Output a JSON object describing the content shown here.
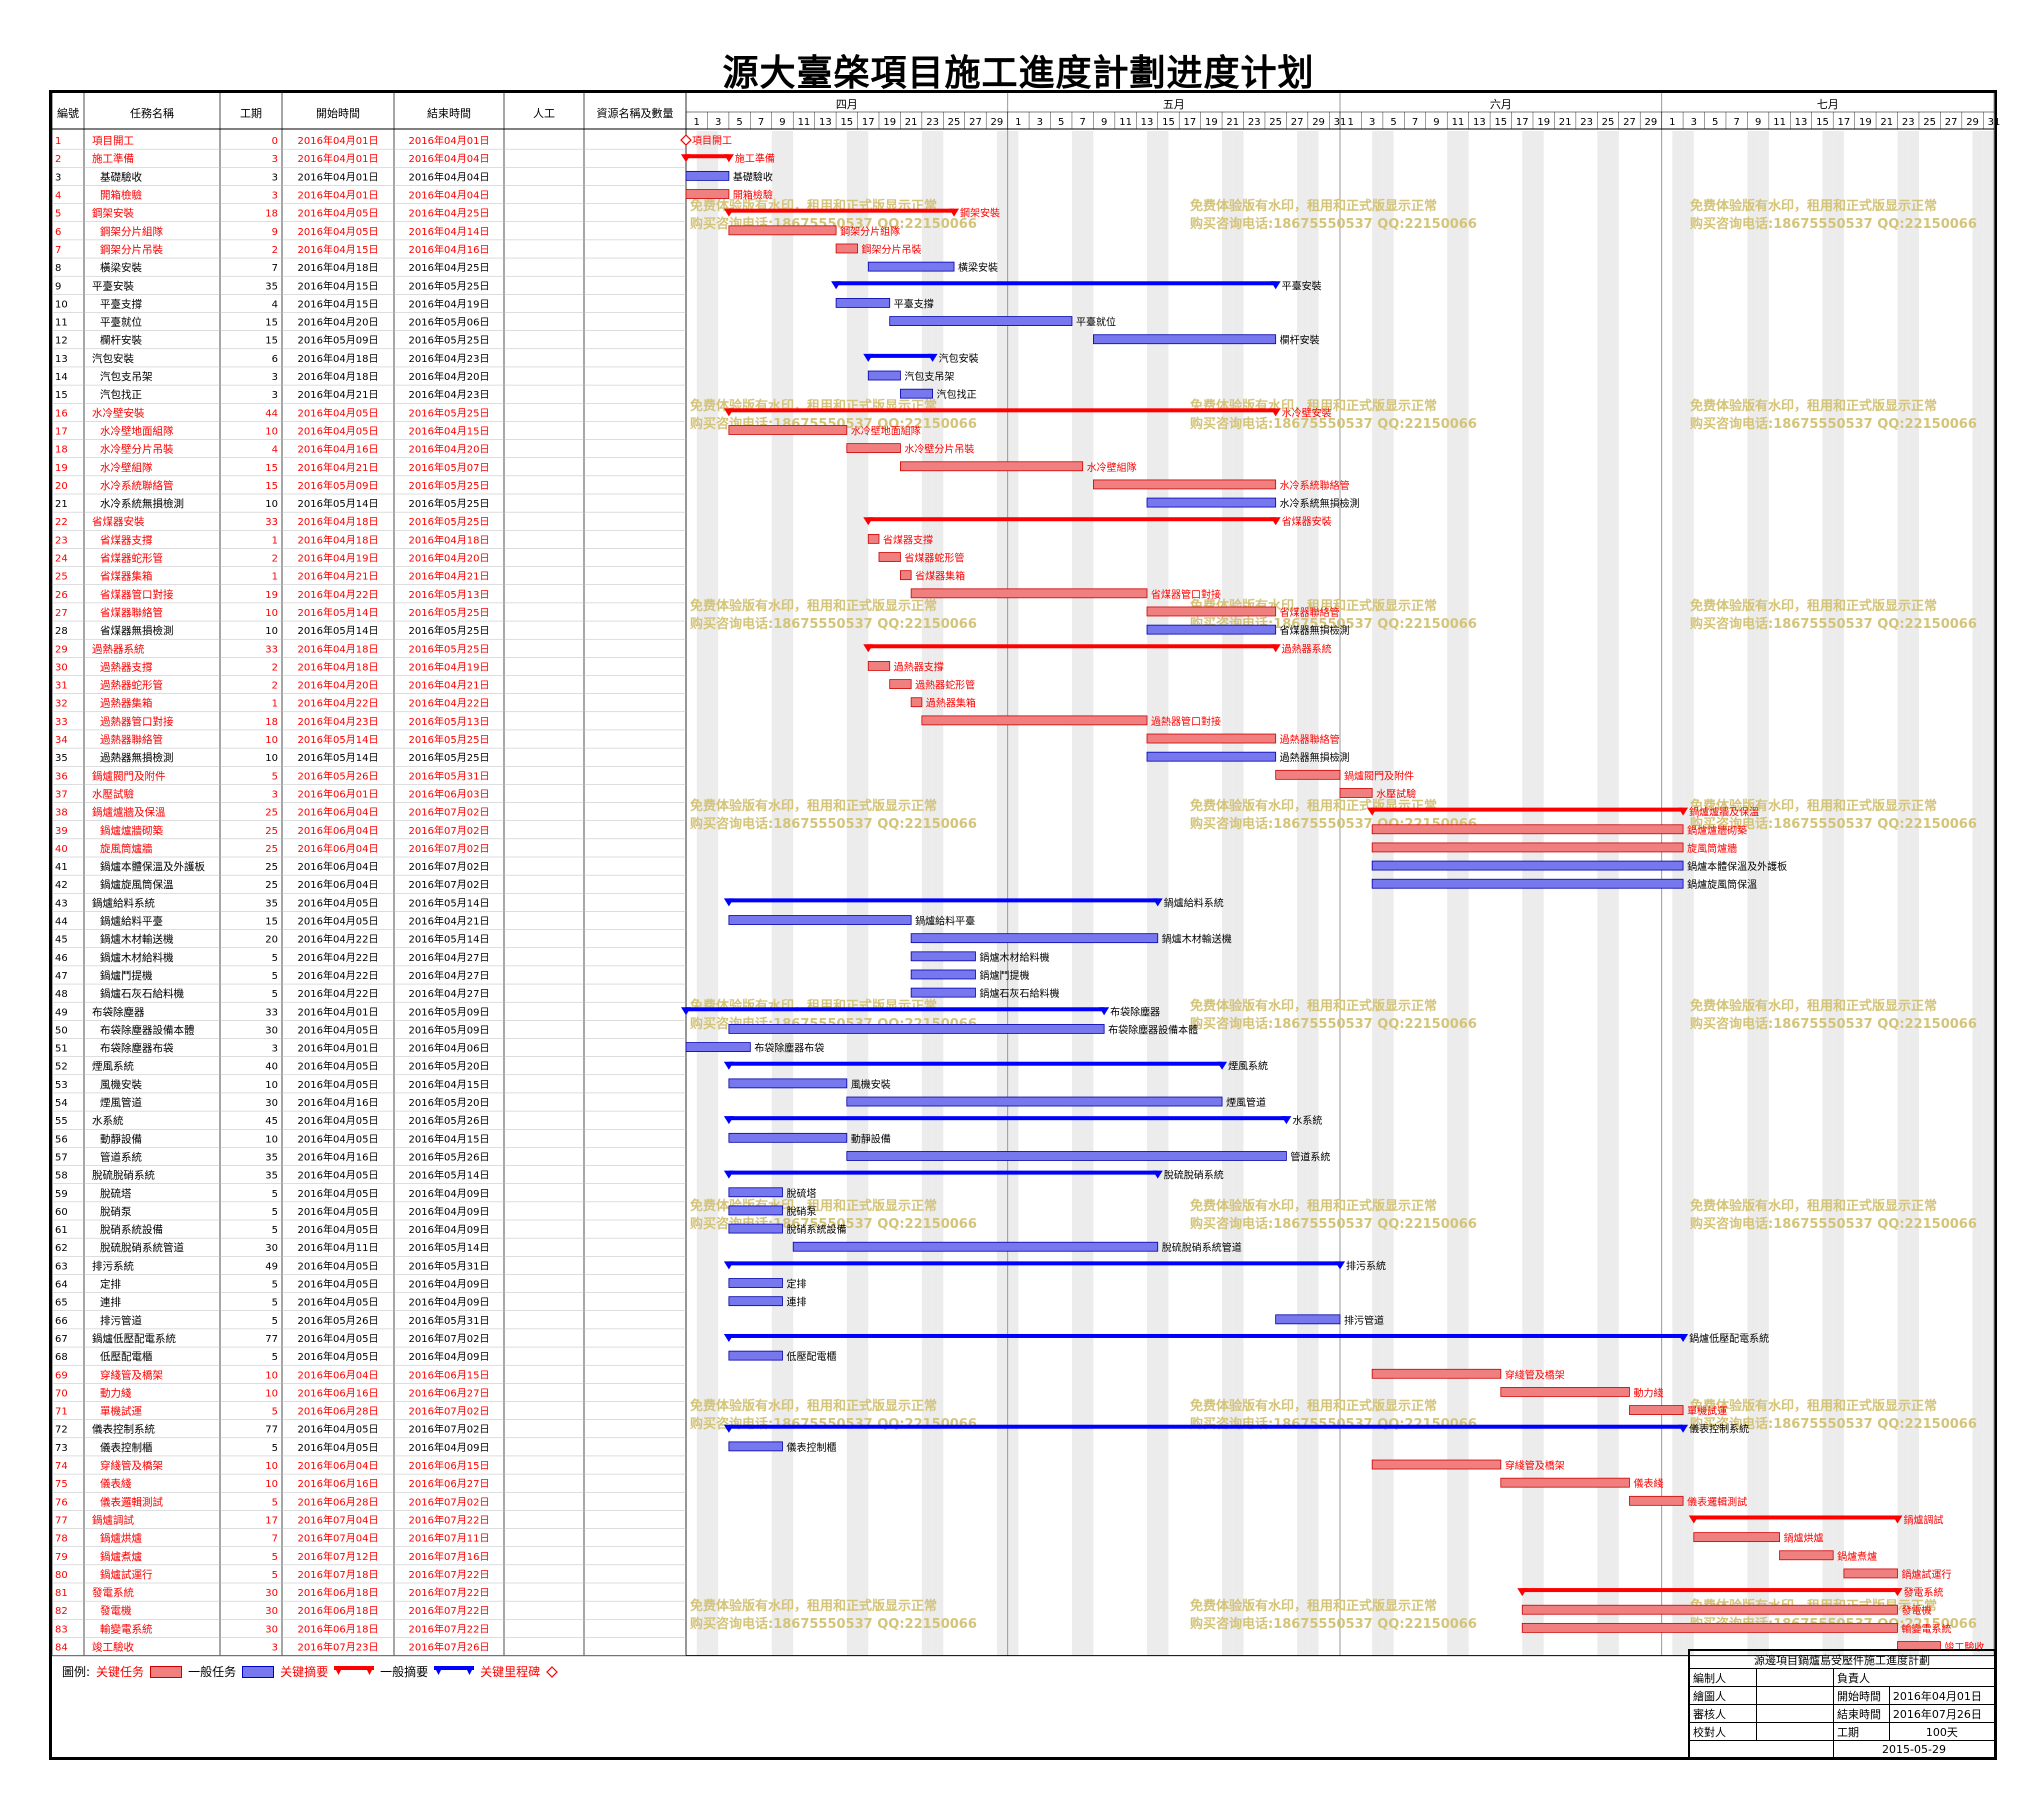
{
  "title": "源大臺棨項目施工進度計劃进度计划",
  "columns": [
    "編號",
    "任務名稱",
    "工期",
    "開始時間",
    "結束時間",
    "人工",
    "資源名稱及數量"
  ],
  "months": [
    "四月",
    "五月",
    "六月",
    "七月"
  ],
  "watermark": {
    "line1": "免费体验版有水印，租用和正式版显示正常",
    "line2": "购买咨询电话:18675550537 QQ:22150066",
    "color": "#d4c47a"
  },
  "colors": {
    "critical": "#ff0000",
    "normal": "#0000ff",
    "critical_bar": "#f08080",
    "normal_bar": "#7777ee"
  },
  "legend": {
    "label": "圖例:",
    "critical_task": "关键任务",
    "normal_task": "一般任务",
    "critical_summary": "关键摘要",
    "normal_summary": "一般摘要",
    "critical_milestone": "关键里程碑"
  },
  "info": {
    "project": "源邊項目鍋爐島受壓件施工進度計劃",
    "rows": [
      [
        "編制人",
        "負責人"
      ],
      [
        "繪圖人",
        "開始時間",
        "2016年04月01日"
      ],
      [
        "審核人",
        "結束時間",
        "2016年07月26日"
      ],
      [
        "校對人",
        "工期",
        "100天"
      ]
    ],
    "date": "2015-05-29"
  },
  "chart_data": {
    "type": "gantt",
    "timeline_start": "2016-04-01",
    "timeline_end": "2016-07-31",
    "tasks": [
      {
        "id": 1,
        "name": "項目開工",
        "dur": 0,
        "start": "2016-04-01",
        "end": "2016-04-01",
        "kind": "milestone",
        "crit": true,
        "lvl": 0
      },
      {
        "id": 2,
        "name": "施工準備",
        "dur": 3,
        "start": "2016-04-01",
        "end": "2016-04-04",
        "kind": "summary",
        "crit": true,
        "lvl": 0
      },
      {
        "id": 3,
        "name": "基礎驗收",
        "dur": 3,
        "start": "2016-04-01",
        "end": "2016-04-04",
        "kind": "task",
        "crit": false,
        "lvl": 1
      },
      {
        "id": 4,
        "name": "開箱檢驗",
        "dur": 3,
        "start": "2016-04-01",
        "end": "2016-04-04",
        "kind": "task",
        "crit": true,
        "lvl": 1
      },
      {
        "id": 5,
        "name": "鋼架安裝",
        "dur": 18,
        "start": "2016-04-05",
        "end": "2016-04-25",
        "kind": "summary",
        "crit": true,
        "lvl": 0
      },
      {
        "id": 6,
        "name": "鋼架分片組隊",
        "dur": 9,
        "start": "2016-04-05",
        "end": "2016-04-14",
        "kind": "task",
        "crit": true,
        "lvl": 1
      },
      {
        "id": 7,
        "name": "鋼架分片吊裝",
        "dur": 2,
        "start": "2016-04-15",
        "end": "2016-04-16",
        "kind": "task",
        "crit": true,
        "lvl": 1
      },
      {
        "id": 8,
        "name": "橫梁安裝",
        "dur": 7,
        "start": "2016-04-18",
        "end": "2016-04-25",
        "kind": "task",
        "crit": false,
        "lvl": 1
      },
      {
        "id": 9,
        "name": "平臺安裝",
        "dur": 35,
        "start": "2016-04-15",
        "end": "2016-05-25",
        "kind": "summary",
        "crit": false,
        "lvl": 0
      },
      {
        "id": 10,
        "name": "平臺支撐",
        "dur": 4,
        "start": "2016-04-15",
        "end": "2016-04-19",
        "kind": "task",
        "crit": false,
        "lvl": 1
      },
      {
        "id": 11,
        "name": "平臺就位",
        "dur": 15,
        "start": "2016-04-20",
        "end": "2016-05-06",
        "kind": "task",
        "crit": false,
        "lvl": 1
      },
      {
        "id": 12,
        "name": "欄杆安裝",
        "dur": 15,
        "start": "2016-05-09",
        "end": "2016-05-25",
        "kind": "task",
        "crit": false,
        "lvl": 1
      },
      {
        "id": 13,
        "name": "汽包安裝",
        "dur": 6,
        "start": "2016-04-18",
        "end": "2016-04-23",
        "kind": "summary",
        "crit": false,
        "lvl": 0
      },
      {
        "id": 14,
        "name": "汽包支吊架",
        "dur": 3,
        "start": "2016-04-18",
        "end": "2016-04-20",
        "kind": "task",
        "crit": false,
        "lvl": 1
      },
      {
        "id": 15,
        "name": "汽包找正",
        "dur": 3,
        "start": "2016-04-21",
        "end": "2016-04-23",
        "kind": "task",
        "crit": false,
        "lvl": 1
      },
      {
        "id": 16,
        "name": "水冷壁安裝",
        "dur": 44,
        "start": "2016-04-05",
        "end": "2016-05-25",
        "kind": "summary",
        "crit": true,
        "lvl": 0
      },
      {
        "id": 17,
        "name": "水冷壁地面組隊",
        "dur": 10,
        "start": "2016-04-05",
        "end": "2016-04-15",
        "kind": "task",
        "crit": true,
        "lvl": 1
      },
      {
        "id": 18,
        "name": "水冷壁分片吊裝",
        "dur": 4,
        "start": "2016-04-16",
        "end": "2016-04-20",
        "kind": "task",
        "crit": true,
        "lvl": 1
      },
      {
        "id": 19,
        "name": "水冷壁組隊",
        "dur": 15,
        "start": "2016-04-21",
        "end": "2016-05-07",
        "kind": "task",
        "crit": true,
        "lvl": 1
      },
      {
        "id": 20,
        "name": "水冷系統聯絡管",
        "dur": 15,
        "start": "2016-05-09",
        "end": "2016-05-25",
        "kind": "task",
        "crit": true,
        "lvl": 1
      },
      {
        "id": 21,
        "name": "水冷系統無損檢測",
        "dur": 10,
        "start": "2016-05-14",
        "end": "2016-05-25",
        "kind": "task",
        "crit": false,
        "lvl": 1
      },
      {
        "id": 22,
        "name": "省煤器安裝",
        "dur": 33,
        "start": "2016-04-18",
        "end": "2016-05-25",
        "kind": "summary",
        "crit": true,
        "lvl": 0
      },
      {
        "id": 23,
        "name": "省煤器支撐",
        "dur": 1,
        "start": "2016-04-18",
        "end": "2016-04-18",
        "kind": "task",
        "crit": true,
        "lvl": 1
      },
      {
        "id": 24,
        "name": "省煤器蛇形管",
        "dur": 2,
        "start": "2016-04-19",
        "end": "2016-04-20",
        "kind": "task",
        "crit": true,
        "lvl": 1
      },
      {
        "id": 25,
        "name": "省煤器集箱",
        "dur": 1,
        "start": "2016-04-21",
        "end": "2016-04-21",
        "kind": "task",
        "crit": true,
        "lvl": 1
      },
      {
        "id": 26,
        "name": "省煤器管口對接",
        "dur": 19,
        "start": "2016-04-22",
        "end": "2016-05-13",
        "kind": "task",
        "crit": true,
        "lvl": 1
      },
      {
        "id": 27,
        "name": "省煤器聯絡管",
        "dur": 10,
        "start": "2016-05-14",
        "end": "2016-05-25",
        "kind": "task",
        "crit": true,
        "lvl": 1
      },
      {
        "id": 28,
        "name": "省煤器無損檢測",
        "dur": 10,
        "start": "2016-05-14",
        "end": "2016-05-25",
        "kind": "task",
        "crit": false,
        "lvl": 1
      },
      {
        "id": 29,
        "name": "過熱器系統",
        "dur": 33,
        "start": "2016-04-18",
        "end": "2016-05-25",
        "kind": "summary",
        "crit": true,
        "lvl": 0
      },
      {
        "id": 30,
        "name": "過熱器支撐",
        "dur": 2,
        "start": "2016-04-18",
        "end": "2016-04-19",
        "kind": "task",
        "crit": true,
        "lvl": 1
      },
      {
        "id": 31,
        "name": "過熱器蛇形管",
        "dur": 2,
        "start": "2016-04-20",
        "end": "2016-04-21",
        "kind": "task",
        "crit": true,
        "lvl": 1
      },
      {
        "id": 32,
        "name": "過熱器集箱",
        "dur": 1,
        "start": "2016-04-22",
        "end": "2016-04-22",
        "kind": "task",
        "crit": true,
        "lvl": 1
      },
      {
        "id": 33,
        "name": "過熱器管口對接",
        "dur": 18,
        "start": "2016-04-23",
        "end": "2016-05-13",
        "kind": "task",
        "crit": true,
        "lvl": 1
      },
      {
        "id": 34,
        "name": "過熱器聯絡管",
        "dur": 10,
        "start": "2016-05-14",
        "end": "2016-05-25",
        "kind": "task",
        "crit": true,
        "lvl": 1
      },
      {
        "id": 35,
        "name": "過熱器無損檢測",
        "dur": 10,
        "start": "2016-05-14",
        "end": "2016-05-25",
        "kind": "task",
        "crit": false,
        "lvl": 1
      },
      {
        "id": 36,
        "name": "鍋爐閥門及附件",
        "dur": 5,
        "start": "2016-05-26",
        "end": "2016-05-31",
        "kind": "task",
        "crit": true,
        "lvl": 0
      },
      {
        "id": 37,
        "name": "水壓試驗",
        "dur": 3,
        "start": "2016-06-01",
        "end": "2016-06-03",
        "kind": "task",
        "crit": true,
        "lvl": 0
      },
      {
        "id": 38,
        "name": "鍋爐爐牆及保溫",
        "dur": 25,
        "start": "2016-06-04",
        "end": "2016-07-02",
        "kind": "summary",
        "crit": true,
        "lvl": 0
      },
      {
        "id": 39,
        "name": "鍋爐爐牆砌築",
        "dur": 25,
        "start": "2016-06-04",
        "end": "2016-07-02",
        "kind": "task",
        "crit": true,
        "lvl": 1
      },
      {
        "id": 40,
        "name": "旋風筒爐牆",
        "dur": 25,
        "start": "2016-06-04",
        "end": "2016-07-02",
        "kind": "task",
        "crit": true,
        "lvl": 1
      },
      {
        "id": 41,
        "name": "鍋爐本體保溫及外護板",
        "dur": 25,
        "start": "2016-06-04",
        "end": "2016-07-02",
        "kind": "task",
        "crit": false,
        "lvl": 1
      },
      {
        "id": 42,
        "name": "鍋爐旋風筒保溫",
        "dur": 25,
        "start": "2016-06-04",
        "end": "2016-07-02",
        "kind": "task",
        "crit": false,
        "lvl": 1
      },
      {
        "id": 43,
        "name": "鍋爐給料系統",
        "dur": 35,
        "start": "2016-04-05",
        "end": "2016-05-14",
        "kind": "summary",
        "crit": false,
        "lvl": 0
      },
      {
        "id": 44,
        "name": "鍋爐給料平臺",
        "dur": 15,
        "start": "2016-04-05",
        "end": "2016-04-21",
        "kind": "task",
        "crit": false,
        "lvl": 1
      },
      {
        "id": 45,
        "name": "鍋爐木材輸送機",
        "dur": 20,
        "start": "2016-04-22",
        "end": "2016-05-14",
        "kind": "task",
        "crit": false,
        "lvl": 1
      },
      {
        "id": 46,
        "name": "鍋爐木材給料機",
        "dur": 5,
        "start": "2016-04-22",
        "end": "2016-04-27",
        "kind": "task",
        "crit": false,
        "lvl": 1
      },
      {
        "id": 47,
        "name": "鍋爐鬥提機",
        "dur": 5,
        "start": "2016-04-22",
        "end": "2016-04-27",
        "kind": "task",
        "crit": false,
        "lvl": 1
      },
      {
        "id": 48,
        "name": "鍋爐石灰石給料機",
        "dur": 5,
        "start": "2016-04-22",
        "end": "2016-04-27",
        "kind": "task",
        "crit": false,
        "lvl": 1
      },
      {
        "id": 49,
        "name": "布袋除塵器",
        "dur": 33,
        "start": "2016-04-01",
        "end": "2016-05-09",
        "kind": "summary",
        "crit": false,
        "lvl": 0
      },
      {
        "id": 50,
        "name": "布袋除塵器設備本體",
        "dur": 30,
        "start": "2016-04-05",
        "end": "2016-05-09",
        "kind": "task",
        "crit": false,
        "lvl": 1
      },
      {
        "id": 51,
        "name": "布袋除塵器布袋",
        "dur": 3,
        "start": "2016-04-01",
        "end": "2016-04-06",
        "kind": "task",
        "crit": false,
        "lvl": 1
      },
      {
        "id": 52,
        "name": "煙風系統",
        "dur": 40,
        "start": "2016-04-05",
        "end": "2016-05-20",
        "kind": "summary",
        "crit": false,
        "lvl": 0
      },
      {
        "id": 53,
        "name": "風機安裝",
        "dur": 10,
        "start": "2016-04-05",
        "end": "2016-04-15",
        "kind": "task",
        "crit": false,
        "lvl": 1
      },
      {
        "id": 54,
        "name": "煙風管道",
        "dur": 30,
        "start": "2016-04-16",
        "end": "2016-05-20",
        "kind": "task",
        "crit": false,
        "lvl": 1
      },
      {
        "id": 55,
        "name": "水系統",
        "dur": 45,
        "start": "2016-04-05",
        "end": "2016-05-26",
        "kind": "summary",
        "crit": false,
        "lvl": 0
      },
      {
        "id": 56,
        "name": "動靜設備",
        "dur": 10,
        "start": "2016-04-05",
        "end": "2016-04-15",
        "kind": "task",
        "crit": false,
        "lvl": 1
      },
      {
        "id": 57,
        "name": "管道系統",
        "dur": 35,
        "start": "2016-04-16",
        "end": "2016-05-26",
        "kind": "task",
        "crit": false,
        "lvl": 1
      },
      {
        "id": 58,
        "name": "脫硫脫硝系統",
        "dur": 35,
        "start": "2016-04-05",
        "end": "2016-05-14",
        "kind": "summary",
        "crit": false,
        "lvl": 0
      },
      {
        "id": 59,
        "name": "脫硫塔",
        "dur": 5,
        "start": "2016-04-05",
        "end": "2016-04-09",
        "kind": "task",
        "crit": false,
        "lvl": 1
      },
      {
        "id": 60,
        "name": "脫硝泵",
        "dur": 5,
        "start": "2016-04-05",
        "end": "2016-04-09",
        "kind": "task",
        "crit": false,
        "lvl": 1
      },
      {
        "id": 61,
        "name": "脫硝系統設備",
        "dur": 5,
        "start": "2016-04-05",
        "end": "2016-04-09",
        "kind": "task",
        "crit": false,
        "lvl": 1
      },
      {
        "id": 62,
        "name": "脫硫脫硝系統管道",
        "dur": 30,
        "start": "2016-04-11",
        "end": "2016-05-14",
        "kind": "task",
        "crit": false,
        "lvl": 1
      },
      {
        "id": 63,
        "name": "排污系統",
        "dur": 49,
        "start": "2016-04-05",
        "end": "2016-05-31",
        "kind": "summary",
        "crit": false,
        "lvl": 0
      },
      {
        "id": 64,
        "name": "定排",
        "dur": 5,
        "start": "2016-04-05",
        "end": "2016-04-09",
        "kind": "task",
        "crit": false,
        "lvl": 1
      },
      {
        "id": 65,
        "name": "連排",
        "dur": 5,
        "start": "2016-04-05",
        "end": "2016-04-09",
        "kind": "task",
        "crit": false,
        "lvl": 1
      },
      {
        "id": 66,
        "name": "排污管道",
        "dur": 5,
        "start": "2016-05-26",
        "end": "2016-05-31",
        "kind": "task",
        "crit": false,
        "lvl": 1
      },
      {
        "id": 67,
        "name": "鍋爐低壓配電系統",
        "dur": 77,
        "start": "2016-04-05",
        "end": "2016-07-02",
        "kind": "summary",
        "crit": false,
        "lvl": 0
      },
      {
        "id": 68,
        "name": "低壓配電櫃",
        "dur": 5,
        "start": "2016-04-05",
        "end": "2016-04-09",
        "kind": "task",
        "crit": false,
        "lvl": 1
      },
      {
        "id": 69,
        "name": "穿綫管及橋架",
        "dur": 10,
        "start": "2016-06-04",
        "end": "2016-06-15",
        "kind": "task",
        "crit": true,
        "lvl": 1
      },
      {
        "id": 70,
        "name": "動力綫",
        "dur": 10,
        "start": "2016-06-16",
        "end": "2016-06-27",
        "kind": "task",
        "crit": true,
        "lvl": 1
      },
      {
        "id": 71,
        "name": "單機試運",
        "dur": 5,
        "start": "2016-06-28",
        "end": "2016-07-02",
        "kind": "task",
        "crit": true,
        "lvl": 1
      },
      {
        "id": 72,
        "name": "儀表控制系統",
        "dur": 77,
        "start": "2016-04-05",
        "end": "2016-07-02",
        "kind": "summary",
        "crit": false,
        "lvl": 0
      },
      {
        "id": 73,
        "name": "儀表控制櫃",
        "dur": 5,
        "start": "2016-04-05",
        "end": "2016-04-09",
        "kind": "task",
        "crit": false,
        "lvl": 1
      },
      {
        "id": 74,
        "name": "穿綫管及橋架",
        "dur": 10,
        "start": "2016-06-04",
        "end": "2016-06-15",
        "kind": "task",
        "crit": true,
        "lvl": 1
      },
      {
        "id": 75,
        "name": "儀表綫",
        "dur": 10,
        "start": "2016-06-16",
        "end": "2016-06-27",
        "kind": "task",
        "crit": true,
        "lvl": 1
      },
      {
        "id": 76,
        "name": "儀表邏輯測試",
        "dur": 5,
        "start": "2016-06-28",
        "end": "2016-07-02",
        "kind": "task",
        "crit": true,
        "lvl": 1
      },
      {
        "id": 77,
        "name": "鍋爐調試",
        "dur": 17,
        "start": "2016-07-04",
        "end": "2016-07-22",
        "kind": "summary",
        "crit": true,
        "lvl": 0
      },
      {
        "id": 78,
        "name": "鍋爐烘爐",
        "dur": 7,
        "start": "2016-07-04",
        "end": "2016-07-11",
        "kind": "task",
        "crit": true,
        "lvl": 1
      },
      {
        "id": 79,
        "name": "鍋爐煮爐",
        "dur": 5,
        "start": "2016-07-12",
        "end": "2016-07-16",
        "kind": "task",
        "crit": true,
        "lvl": 1
      },
      {
        "id": 80,
        "name": "鍋爐試運行",
        "dur": 5,
        "start": "2016-07-18",
        "end": "2016-07-22",
        "kind": "task",
        "crit": true,
        "lvl": 1
      },
      {
        "id": 81,
        "name": "發電系統",
        "dur": 30,
        "start": "2016-06-18",
        "end": "2016-07-22",
        "kind": "summary",
        "crit": true,
        "lvl": 0
      },
      {
        "id": 82,
        "name": "發電機",
        "dur": 30,
        "start": "2016-06-18",
        "end": "2016-07-22",
        "kind": "task",
        "crit": true,
        "lvl": 1
      },
      {
        "id": 83,
        "name": "輸變電系統",
        "dur": 30,
        "start": "2016-06-18",
        "end": "2016-07-22",
        "kind": "task",
        "crit": true,
        "lvl": 1
      },
      {
        "id": 84,
        "name": "竣工驗收",
        "dur": 3,
        "start": "2016-07-23",
        "end": "2016-07-26",
        "kind": "task",
        "crit": true,
        "lvl": 0
      }
    ]
  }
}
